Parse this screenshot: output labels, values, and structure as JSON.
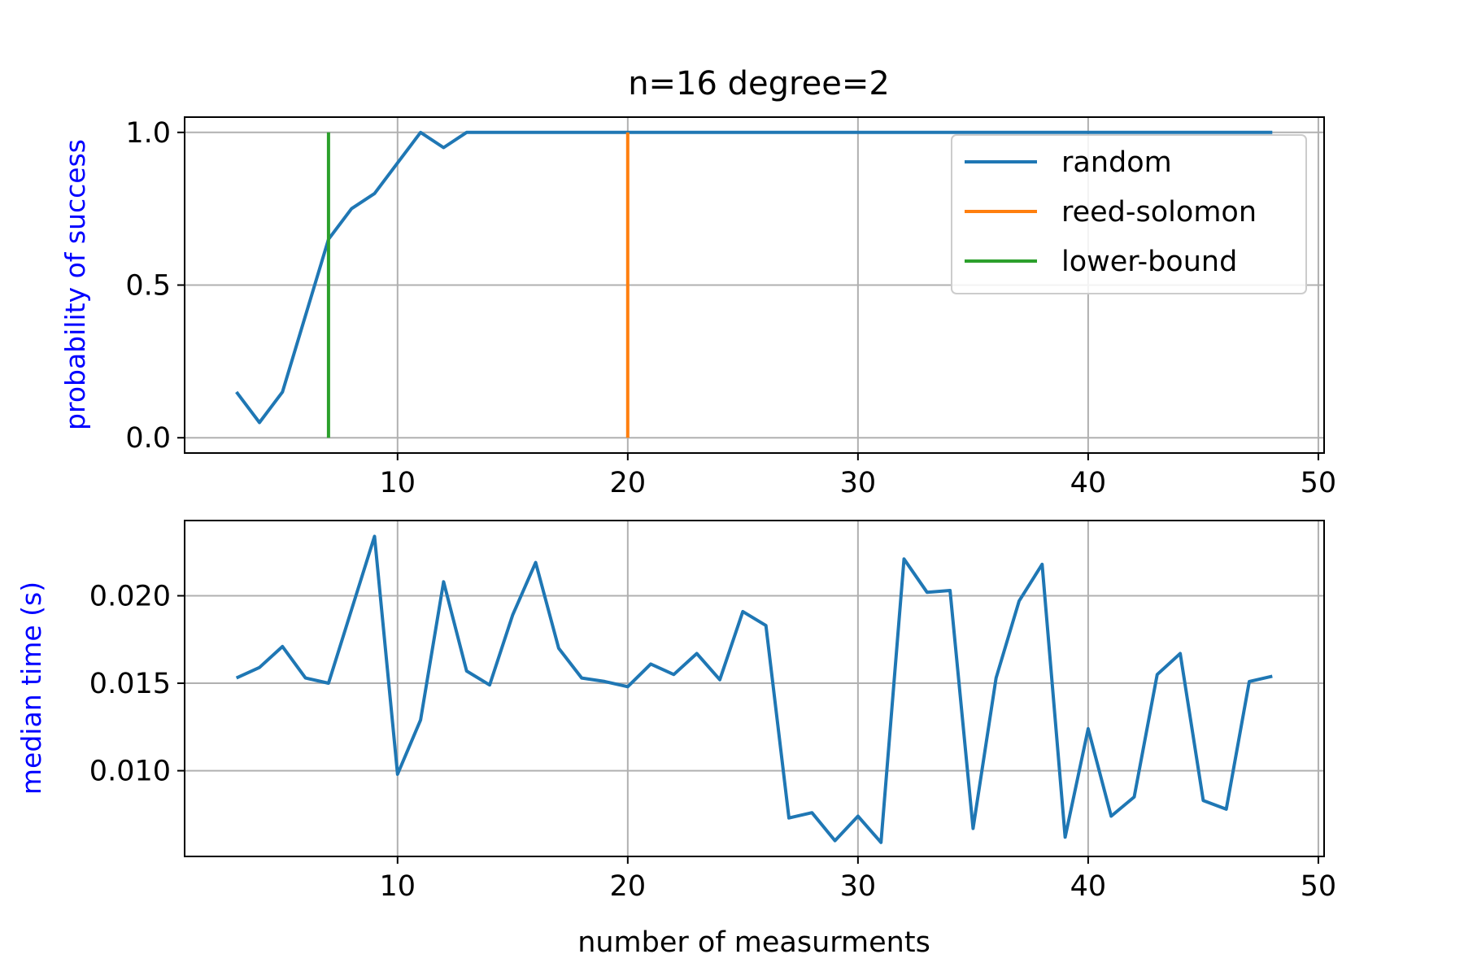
{
  "chart_data": [
    {
      "type": "line",
      "title": "n=16 degree=2",
      "xlabel": "",
      "ylabel": "probability of success",
      "ylabel_color": "#0000ff",
      "xlim": [
        0.75,
        50.25
      ],
      "ylim": [
        -0.05,
        1.05
      ],
      "xticks": [
        "10",
        "20",
        "30",
        "40",
        "50"
      ],
      "xtick_values": [
        10,
        20,
        30,
        40,
        50
      ],
      "yticks": [
        "0.0",
        "0.5",
        "1.0"
      ],
      "ytick_values": [
        0.0,
        0.5,
        1.0
      ],
      "grid": true,
      "legend_position": "upper-right",
      "series": [
        {
          "name": "random",
          "color": "#1f77b4",
          "x": [
            3,
            4,
            5,
            6,
            7,
            8,
            9,
            10,
            11,
            12,
            13,
            14,
            15,
            16,
            17,
            18,
            19,
            20,
            21,
            22,
            23,
            24,
            25,
            26,
            27,
            28,
            29,
            30,
            31,
            32,
            33,
            34,
            35,
            36,
            37,
            38,
            39,
            40,
            41,
            42,
            43,
            44,
            45,
            46,
            47,
            48
          ],
          "y": [
            0.15,
            0.05,
            0.15,
            0.4,
            0.65,
            0.75,
            0.8,
            0.9,
            1.0,
            0.95,
            1.0,
            1.0,
            1.0,
            1.0,
            1.0,
            1.0,
            1.0,
            1.0,
            1.0,
            1.0,
            1.0,
            1.0,
            1.0,
            1.0,
            1.0,
            1.0,
            1.0,
            1.0,
            1.0,
            1.0,
            1.0,
            1.0,
            1.0,
            1.0,
            1.0,
            1.0,
            1.0,
            1.0,
            1.0,
            1.0,
            1.0,
            1.0,
            1.0,
            1.0,
            1.0,
            1.0
          ]
        },
        {
          "name": "reed-solomon",
          "color": "#ff7f0e",
          "x": [
            20,
            20
          ],
          "y": [
            0.0,
            1.0
          ]
        },
        {
          "name": "lower-bound",
          "color": "#2ca02c",
          "x": [
            7,
            7
          ],
          "y": [
            0.0,
            1.0
          ]
        }
      ]
    },
    {
      "type": "line",
      "title": "",
      "xlabel": "number of measurments",
      "ylabel": "median time (s)",
      "ylabel_color": "#0000ff",
      "xlim": [
        0.75,
        50.25
      ],
      "ylim": [
        0.0051,
        0.0243
      ],
      "xticks": [
        "10",
        "20",
        "30",
        "40",
        "50"
      ],
      "xtick_values": [
        10,
        20,
        30,
        40,
        50
      ],
      "yticks": [
        "0.010",
        "0.015",
        "0.020"
      ],
      "ytick_values": [
        0.01,
        0.015,
        0.02
      ],
      "grid": true,
      "series": [
        {
          "color": "#1f77b4",
          "x": [
            3,
            4,
            5,
            6,
            7,
            8,
            9,
            10,
            11,
            12,
            13,
            14,
            15,
            16,
            17,
            18,
            19,
            20,
            21,
            22,
            23,
            24,
            25,
            26,
            27,
            28,
            29,
            30,
            31,
            32,
            33,
            34,
            35,
            36,
            37,
            38,
            39,
            40,
            41,
            42,
            43,
            44,
            45,
            46,
            47,
            48
          ],
          "y": [
            0.0153,
            0.0159,
            0.0171,
            0.0153,
            0.015,
            0.0192,
            0.0234,
            0.0098,
            0.0129,
            0.0208,
            0.0157,
            0.0149,
            0.0189,
            0.0219,
            0.017,
            0.0153,
            0.0151,
            0.0148,
            0.0161,
            0.0155,
            0.0167,
            0.0152,
            0.0191,
            0.0183,
            0.0073,
            0.0076,
            0.006,
            0.0074,
            0.0059,
            0.0221,
            0.0202,
            0.0203,
            0.0067,
            0.0153,
            0.0197,
            0.0218,
            0.0062,
            0.0124,
            0.0074,
            0.0085,
            0.0155,
            0.0167,
            0.0083,
            0.0078,
            0.0151,
            0.0154
          ]
        }
      ]
    }
  ]
}
